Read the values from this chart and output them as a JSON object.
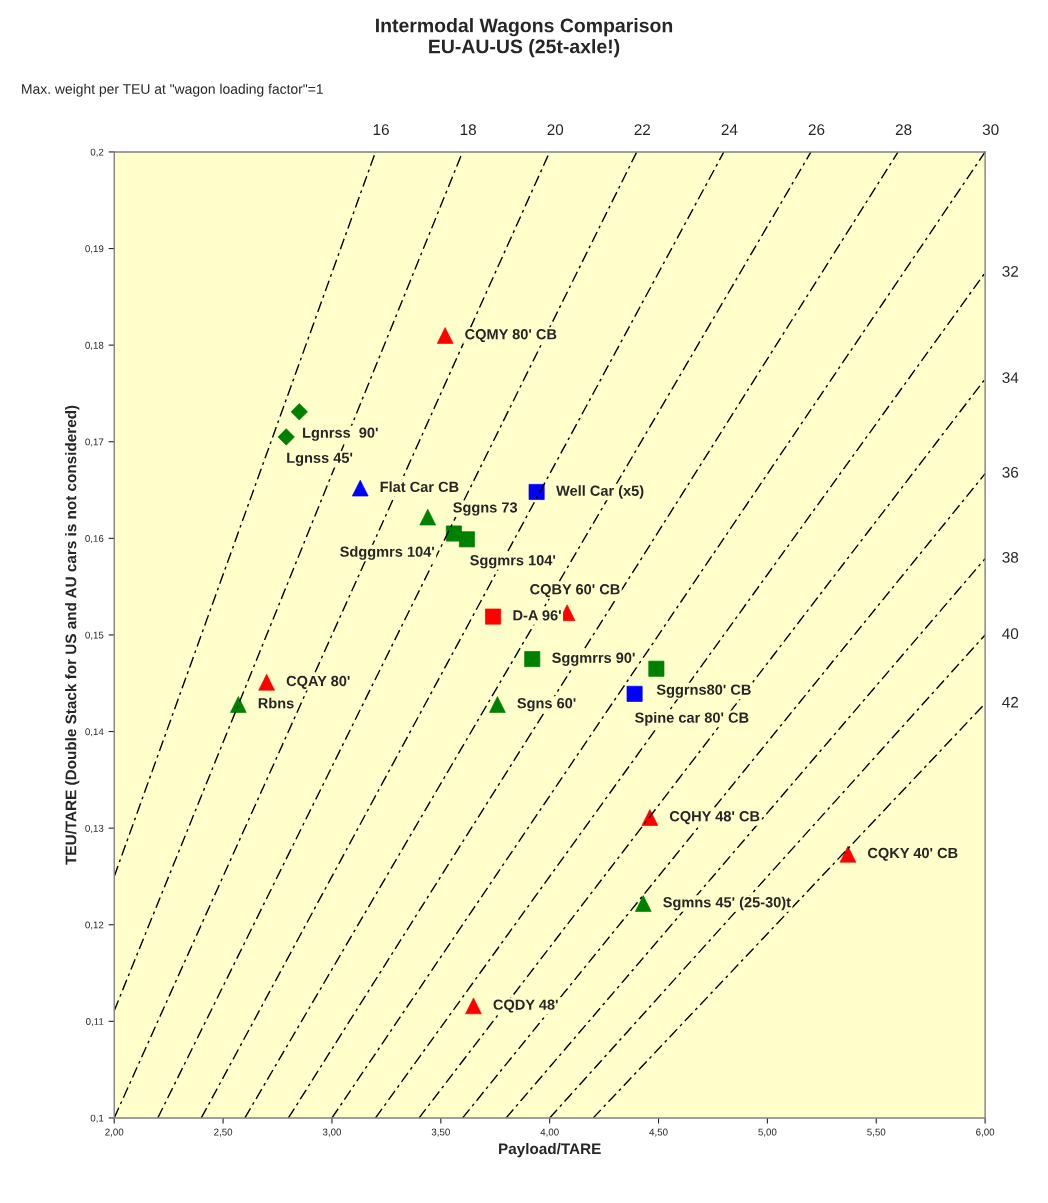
{
  "chart_data": {
    "type": "scatter",
    "title": "Intermodal Wagons Comparison\nEU-AU-US (25t-axle!)",
    "xlabel": "Payload/TARE",
    "ylabel": "TEU/TARE (Double Stack for US and AU cars is not considered)",
    "xlim": [
      2.0,
      6.0
    ],
    "ylim": [
      0.1,
      0.2
    ],
    "xticks": [
      {
        "value": 2.0,
        "label": "2,00"
      },
      {
        "value": 2.5,
        "label": "2,50"
      },
      {
        "value": 3.0,
        "label": "3,00"
      },
      {
        "value": 3.5,
        "label": "3,50"
      },
      {
        "value": 4.0,
        "label": "4,00"
      },
      {
        "value": 4.5,
        "label": "4,50"
      },
      {
        "value": 5.0,
        "label": "5,00"
      },
      {
        "value": 5.5,
        "label": "5,50"
      },
      {
        "value": 6.0,
        "label": "6,00"
      }
    ],
    "yticks": [
      {
        "value": 0.1,
        "label": "0,1"
      },
      {
        "value": 0.11,
        "label": "0,11"
      },
      {
        "value": 0.12,
        "label": "0,12"
      },
      {
        "value": 0.13,
        "label": "0,13"
      },
      {
        "value": 0.14,
        "label": "0,14"
      },
      {
        "value": 0.15,
        "label": "0,15"
      },
      {
        "value": 0.16,
        "label": "0,16"
      },
      {
        "value": 0.17,
        "label": "0,17"
      },
      {
        "value": 0.18,
        "label": "0,18"
      },
      {
        "value": 0.19,
        "label": "0,19"
      },
      {
        "value": 0.2,
        "label": "0,2"
      }
    ],
    "grid": false,
    "legend": false,
    "series": [
      {
        "type": "line",
        "name": "16",
        "color": "#000000",
        "line_style": "dashed",
        "marker": "none",
        "x": [
          2.0,
          3.2
        ],
        "values": [
          0.125,
          0.2
        ]
      },
      {
        "type": "line",
        "name": "18",
        "color": "#000000",
        "line_style": "dashed",
        "marker": "none",
        "x": [
          2.0,
          3.6
        ],
        "values": [
          0.1111,
          0.2
        ]
      },
      {
        "type": "line",
        "name": "20",
        "color": "#000000",
        "line_style": "dashed",
        "marker": "none",
        "x": [
          2.0,
          4.0
        ],
        "values": [
          0.1,
          0.2
        ]
      },
      {
        "type": "line",
        "name": "22",
        "color": "#000000",
        "line_style": "dashed",
        "marker": "none",
        "x": [
          2.2,
          4.4
        ],
        "values": [
          0.1,
          0.2
        ]
      },
      {
        "type": "line",
        "name": "24",
        "color": "#000000",
        "line_style": "dashed",
        "marker": "none",
        "x": [
          2.4,
          4.8
        ],
        "values": [
          0.1,
          0.2
        ]
      },
      {
        "type": "line",
        "name": "26",
        "color": "#000000",
        "line_style": "dashed",
        "marker": "none",
        "x": [
          2.6,
          5.2
        ],
        "values": [
          0.1,
          0.2
        ]
      },
      {
        "type": "line",
        "name": "28",
        "color": "#000000",
        "line_style": "dashed",
        "marker": "none",
        "x": [
          2.8,
          5.6
        ],
        "values": [
          0.1,
          0.2
        ]
      },
      {
        "type": "line",
        "name": "30",
        "color": "#000000",
        "line_style": "dashed",
        "marker": "none",
        "x": [
          3.0,
          6.0
        ],
        "values": [
          0.1,
          0.2
        ]
      },
      {
        "type": "line",
        "name": "32",
        "color": "#000000",
        "line_style": "dashed",
        "marker": "none",
        "x": [
          3.2,
          6.0
        ],
        "values": [
          0.1,
          0.1875
        ]
      },
      {
        "type": "line",
        "name": "34",
        "color": "#000000",
        "line_style": "dashed",
        "marker": "none",
        "x": [
          3.4,
          6.0
        ],
        "values": [
          0.1,
          0.1765
        ]
      },
      {
        "type": "line",
        "name": "36",
        "color": "#000000",
        "line_style": "dashed",
        "marker": "none",
        "x": [
          3.6,
          6.0
        ],
        "values": [
          0.1,
          0.1667
        ]
      },
      {
        "type": "line",
        "name": "38",
        "color": "#000000",
        "line_style": "dashed",
        "marker": "none",
        "x": [
          3.8,
          6.0
        ],
        "values": [
          0.1,
          0.1579
        ]
      },
      {
        "type": "line",
        "name": "40",
        "color": "#000000",
        "line_style": "dashed",
        "marker": "none",
        "x": [
          4.0,
          6.0
        ],
        "values": [
          0.1,
          0.15
        ]
      },
      {
        "type": "line",
        "name": "42",
        "color": "#000000",
        "line_style": "dashed",
        "marker": "none",
        "x": [
          4.2,
          6.0
        ],
        "values": [
          0.1,
          0.1429
        ]
      },
      {
        "color": "#ff0000",
        "marker": "triangle",
        "x": [
          3.52,
          4.08,
          2.7,
          4.46,
          5.37,
          3.65
        ],
        "values": [
          0.181,
          0.1523,
          0.1451,
          0.1311,
          0.1273,
          0.1116
        ]
      },
      {
        "color": "#ff0000",
        "marker": "square",
        "x": [
          3.74
        ],
        "values": [
          0.1519
        ]
      },
      {
        "color": "#008000",
        "marker": "triangle",
        "x": [
          3.44,
          2.57,
          3.76,
          4.43
        ],
        "values": [
          0.1622,
          0.1428,
          0.1428,
          0.1222
        ]
      },
      {
        "color": "#008000",
        "marker": "square",
        "x": [
          3.56,
          3.62,
          3.92,
          4.49
        ],
        "values": [
          0.1605,
          0.1599,
          0.1475,
          0.1465
        ]
      },
      {
        "color": "#008000",
        "marker": "diamond",
        "x": [
          2.85,
          2.79
        ],
        "values": [
          0.1731,
          0.1705
        ]
      },
      {
        "color": "#0000ff",
        "marker": "triangle",
        "x": [
          3.13
        ],
        "values": [
          0.1652
        ]
      },
      {
        "color": "#0000ff",
        "marker": "square",
        "x": [
          3.94,
          4.39
        ],
        "values": [
          0.1648,
          0.1439
        ]
      }
    ],
    "annotations": [
      "Max. weight per TEU at \"wagon loading factor\"=1",
      {
        "text": "CQMY 80' CB",
        "x": 3.52,
        "y": 0.181
      },
      {
        "text": "Lgnrss  90'",
        "x": 2.85,
        "y": 0.1731
      },
      {
        "text": "Lgnss 45'",
        "x": 2.79,
        "y": 0.1705
      },
      {
        "text": "Flat Car CB",
        "x": 3.13,
        "y": 0.1652
      },
      {
        "text": "Well Car (x5)",
        "x": 3.94,
        "y": 0.1648
      },
      {
        "text": "Sggns 73",
        "x": 3.44,
        "y": 0.1622
      },
      {
        "text": "Sdggmrs 104'",
        "x": 3.56,
        "y": 0.1605
      },
      {
        "text": "Sggmrs 104'",
        "x": 3.62,
        "y": 0.1599
      },
      {
        "text": "CQBY 60' CB",
        "x": 4.08,
        "y": 0.1523
      },
      {
        "text": "D-A 96'",
        "x": 3.74,
        "y": 0.1519
      },
      {
        "text": "CQAY 80'",
        "x": 2.7,
        "y": 0.1451
      },
      {
        "text": "Sggmrrs 90'",
        "x": 3.92,
        "y": 0.1475
      },
      {
        "text": "Sggrns80' CB",
        "x": 4.49,
        "y": 0.1465
      },
      {
        "text": "Spine car 80' CB",
        "x": 4.39,
        "y": 0.1439
      },
      {
        "text": "Rbns",
        "x": 2.57,
        "y": 0.1428
      },
      {
        "text": "Sgns 60'",
        "x": 3.76,
        "y": 0.1428
      },
      {
        "text": "CQHY 48' CB",
        "x": 4.46,
        "y": 0.1311
      },
      {
        "text": "CQKY 40' CB",
        "x": 5.37,
        "y": 0.1273
      },
      {
        "text": "Sgmns 45' (25-30)t",
        "x": 4.43,
        "y": 0.1222
      },
      {
        "text": "CQDY 48'",
        "x": 3.65,
        "y": 0.1116
      }
    ]
  }
}
